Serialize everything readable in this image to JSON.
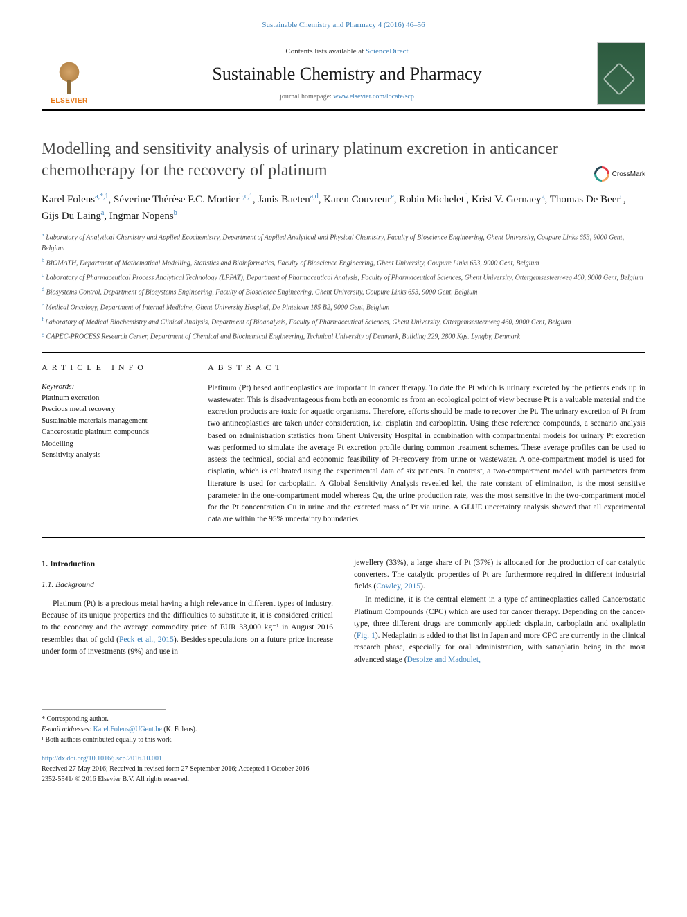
{
  "header": {
    "top_citation": "Sustainable Chemistry and Pharmacy 4 (2016) 46–56",
    "contents_line_pre": "Contents lists available at ",
    "contents_line_link": "ScienceDirect",
    "journal_title": "Sustainable Chemistry and Pharmacy",
    "homepage_pre": "journal homepage: ",
    "homepage_link": "www.elsevier.com/locate/scp",
    "elsevier_label": "ELSEVIER",
    "crossmark_label": "CrossMark"
  },
  "title": "Modelling and sensitivity analysis of urinary platinum excretion in anticancer chemotherapy for the recovery of platinum",
  "authors_html": "Karel Folens<sup>a,*,1</sup>, Séverine Thérèse F.C. Mortier<sup>b,c,1</sup>, Janis Baeten<sup>a,d</sup>, Karen Couvreur<sup>e</sup>, Robin Michelet<sup>f</sup>, Krist V. Gernaey<sup>g</sup>, Thomas De Beer<sup>c</sup>, Gijs Du Laing<sup>a</sup>, Ingmar Nopens<sup>b</sup>",
  "affiliations": [
    {
      "sup": "a",
      "text": " Laboratory of Analytical Chemistry and Applied Ecochemistry, Department of Applied Analytical and Physical Chemistry, Faculty of Bioscience Engineering, Ghent University, Coupure Links 653, 9000 Gent, Belgium"
    },
    {
      "sup": "b",
      "text": " BIOMATH, Department of Mathematical Modelling, Statistics and Bioinformatics, Faculty of Bioscience Engineering, Ghent University, Coupure Links 653, 9000 Gent, Belgium"
    },
    {
      "sup": "c",
      "text": " Laboratory of Pharmaceutical Process Analytical Technology (LPPAT), Department of Pharmaceutical Analysis, Faculty of Pharmaceutical Sciences, Ghent University, Ottergemsesteenweg 460, 9000 Gent, Belgium"
    },
    {
      "sup": "d",
      "text": " Biosystems Control, Department of Biosystems Engineering, Faculty of Bioscience Engineering, Ghent University, Coupure Links 653, 9000 Gent, Belgium"
    },
    {
      "sup": "e",
      "text": " Medical Oncology, Department of Internal Medicine, Ghent University Hospital, De Pintelaan 185 B2, 9000 Gent, Belgium"
    },
    {
      "sup": "f",
      "text": " Laboratory of Medical Biochemistry and Clinical Analysis, Department of Bioanalysis, Faculty of Pharmaceutical Sciences, Ghent University, Ottergemsesteenweg 460, 9000 Gent, Belgium"
    },
    {
      "sup": "g",
      "text": " CAPEC-PROCESS Research Center, Department of Chemical and Biochemical Engineering, Technical University of Denmark, Building 229, 2800 Kgs. Lyngby, Denmark"
    }
  ],
  "article_info": {
    "heading": "ARTICLE INFO",
    "keywords_label": "Keywords:",
    "keywords": [
      "Platinum excretion",
      "Precious metal recovery",
      "Sustainable materials management",
      "Cancerostatic platinum compounds",
      "Modelling",
      "Sensitivity analysis"
    ]
  },
  "abstract": {
    "heading": "ABSTRACT",
    "text": "Platinum (Pt) based antineoplastics are important in cancer therapy. To date the Pt which is urinary excreted by the patients ends up in wastewater. This is disadvantageous from both an economic as from an ecological point of view because Pt is a valuable material and the excretion products are toxic for aquatic organisms. Therefore, efforts should be made to recover the Pt. The urinary excretion of Pt from two antineoplastics are taken under consideration, i.e. cisplatin and carboplatin. Using these reference compounds, a scenario analysis based on administration statistics from Ghent University Hospital in combination with compartmental models for urinary Pt excretion was performed to simulate the average Pt excretion profile during common treatment schemes. These average profiles can be used to assess the technical, social and economic feasibility of Pt-recovery from urine or wastewater. A one-compartment model is used for cisplatin, which is calibrated using the experimental data of six patients. In contrast, a two-compartment model with parameters from literature is used for carboplatin. A Global Sensitivity Analysis revealed kel, the rate constant of elimination, is the most sensitive parameter in the one-compartment model whereas Qu, the urine production rate, was the most sensitive in the two-compartment model for the Pt concentration Cu in urine and the excreted mass of Pt via urine. A GLUE uncertainty analysis showed that all experimental data are within the 95% uncertainty boundaries."
  },
  "body": {
    "h1": "1. Introduction",
    "h2": "1.1. Background",
    "p1_pre": "Platinum (Pt) is a precious metal having a high relevance in different types of industry. Because of its unique properties and the difficulties to substitute it, it is considered critical to the economy and the average commodity price of EUR 33,000 kg⁻¹ in August 2016 resembles that of gold (",
    "p1_cite": "Peck et al., 2015",
    "p1_post": "). Besides speculations on a future price increase under form of investments (9%) and use in",
    "p2_pre": "jewellery (33%), a large share of Pt (37%) is allocated for the production of car catalytic converters. The catalytic properties of Pt are furthermore required in different industrial fields (",
    "p2_cite": "Cowley, 2015",
    "p2_post": ").",
    "p3_pre": "In medicine, it is the central element in a type of antineoplastics called Cancerostatic Platinum Compounds (CPC) which are used for cancer therapy. Depending on the cancer-type, three different drugs are commonly applied: cisplatin, carboplatin and oxaliplatin (",
    "p3_cite": "Fig. 1",
    "p3_mid": "). Nedaplatin is added to that list in Japan and more CPC are currently in the clinical research phase, especially for oral administration, with satraplatin being in the most advanced stage (",
    "p3_cite2": "Desoize and Madoulet,"
  },
  "footnotes": {
    "corr": "* Corresponding author.",
    "email_label": "E-mail addresses: ",
    "email": "Karel.Folens@UGent.be",
    "email_suffix": " (K. Folens).",
    "shared": "¹ Both authors contributed equally to this work."
  },
  "doi_block": {
    "doi": "http://dx.doi.org/10.1016/j.scp.2016.10.001",
    "received": "Received 27 May 2016; Received in revised form 27 September 2016; Accepted 1 October 2016",
    "copyright": "2352-5541/ © 2016 Elsevier B.V. All rights reserved."
  },
  "colors": {
    "link": "#3a7fb8",
    "text": "#1a1a1a",
    "orange": "#e67817"
  }
}
